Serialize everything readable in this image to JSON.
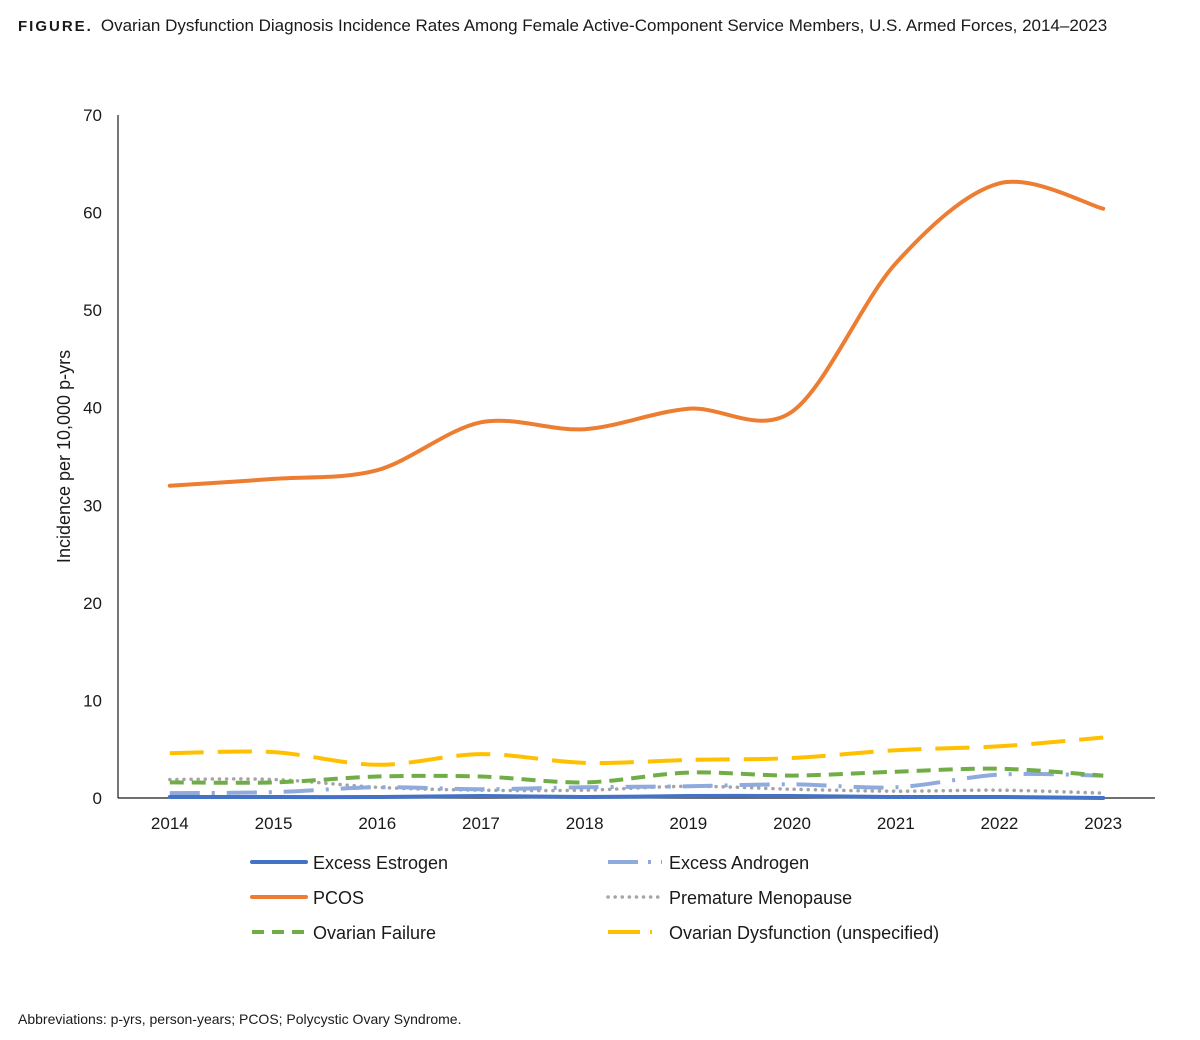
{
  "figure_label": "FIGURE.",
  "footnote": "Abbreviations: p-yrs, person-years; PCOS; Polycystic Ovary Syndrome.",
  "chart_data": {
    "type": "line",
    "title": "Ovarian Dysfunction Diagnosis Incidence Rates Among Female Active-Component Service Members, U.S. Armed Forces, 2014–2023",
    "xlabel": "",
    "ylabel": "Incidence per 10,000 p-yrs",
    "ylim": [
      0,
      70
    ],
    "yticks": [
      "0",
      "10",
      "20",
      "30",
      "40",
      "50",
      "60",
      "70"
    ],
    "categories": [
      "2014",
      "2015",
      "2016",
      "2017",
      "2018",
      "2019",
      "2020",
      "2021",
      "2022",
      "2023"
    ],
    "grid": false,
    "legend_position": "bottom",
    "series": [
      {
        "name": "Excess Estrogen",
        "color": "#4472C4",
        "style": "solid",
        "values": [
          0.1,
          0.1,
          0.1,
          0.2,
          0.1,
          0.2,
          0.2,
          0.1,
          0.1,
          0.0
        ]
      },
      {
        "name": "Excess Androgen",
        "color": "#8FAADC",
        "style": "long-dash-dot",
        "values": [
          0.5,
          0.6,
          1.1,
          0.9,
          1.1,
          1.2,
          1.4,
          1.1,
          2.4,
          2.3
        ]
      },
      {
        "name": "PCOS",
        "color": "#ED7D31",
        "style": "solid",
        "values": [
          32.0,
          32.7,
          33.6,
          38.5,
          37.8,
          39.9,
          39.6,
          54.8,
          63.0,
          60.4
        ]
      },
      {
        "name": "Premature Menopause",
        "color": "#A5A5A5",
        "style": "dotted",
        "values": [
          1.9,
          1.9,
          1.1,
          0.8,
          0.8,
          1.2,
          0.9,
          0.7,
          0.8,
          0.5
        ]
      },
      {
        "name": "Ovarian Failure",
        "color": "#70AD47",
        "style": "dashed",
        "values": [
          1.6,
          1.6,
          2.2,
          2.2,
          1.6,
          2.6,
          2.3,
          2.7,
          3.0,
          2.3
        ]
      },
      {
        "name": "Ovarian Dysfunction (unspecified)",
        "color": "#FFC000",
        "style": "long-dash",
        "values": [
          4.6,
          4.7,
          3.4,
          4.5,
          3.6,
          3.9,
          4.1,
          4.9,
          5.3,
          6.2
        ]
      }
    ]
  }
}
